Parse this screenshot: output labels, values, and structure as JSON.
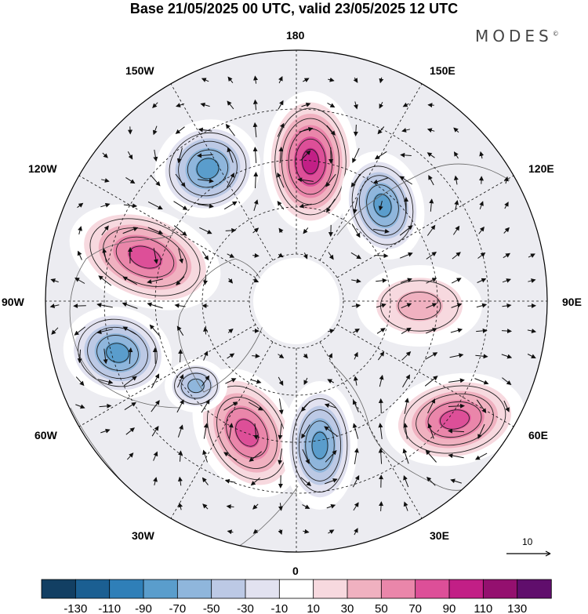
{
  "title": "Base 21/05/2025 00 UTC, valid 23/05/2025 12 UTC",
  "logo": {
    "text": "MODES",
    "mark": "©"
  },
  "longitude_labels": {
    "lon_180": "180",
    "lon_150e": "150E",
    "lon_120e": "120E",
    "lon_90e": "90E",
    "lon_60e": "60E",
    "lon_30e": "30E",
    "lon_0": "0",
    "lon_30w": "30W",
    "lon_60w": "60W",
    "lon_90w": "90W",
    "lon_120w": "120W",
    "lon_150w": "150W"
  },
  "reference_vector": {
    "label": "10"
  },
  "colorbar": {
    "colors": [
      "#123f63",
      "#1b5f92",
      "#2f7fb8",
      "#5a9dcc",
      "#8fb6dc",
      "#bcc9e5",
      "#e2e2f0",
      "#ffffff",
      "#f7d9df",
      "#f0b1c0",
      "#ea86aa",
      "#dd4f98",
      "#c21f86",
      "#94106f",
      "#600e6c"
    ],
    "labels": [
      "-130",
      "-110",
      "-90",
      "-70",
      "-50",
      "-30",
      "-10",
      "10",
      "30",
      "50",
      "70",
      "90",
      "110",
      "130"
    ]
  },
  "anomalies": [
    {
      "sign": "positive",
      "level": 110,
      "near": "180"
    },
    {
      "sign": "positive",
      "level": 90,
      "near": "120W"
    },
    {
      "sign": "positive",
      "level": 90,
      "near": "30W"
    },
    {
      "sign": "positive",
      "level": 90,
      "near": "60E"
    },
    {
      "sign": "positive",
      "level": 50,
      "near": "90E"
    },
    {
      "sign": "negative",
      "level": -70,
      "near": "150W"
    },
    {
      "sign": "negative",
      "level": -70,
      "near": "90W"
    },
    {
      "sign": "negative",
      "level": -70,
      "near": "150E"
    },
    {
      "sign": "negative",
      "level": -70,
      "near": "0"
    },
    {
      "sign": "negative",
      "level": -50,
      "near": "60W"
    }
  ]
}
